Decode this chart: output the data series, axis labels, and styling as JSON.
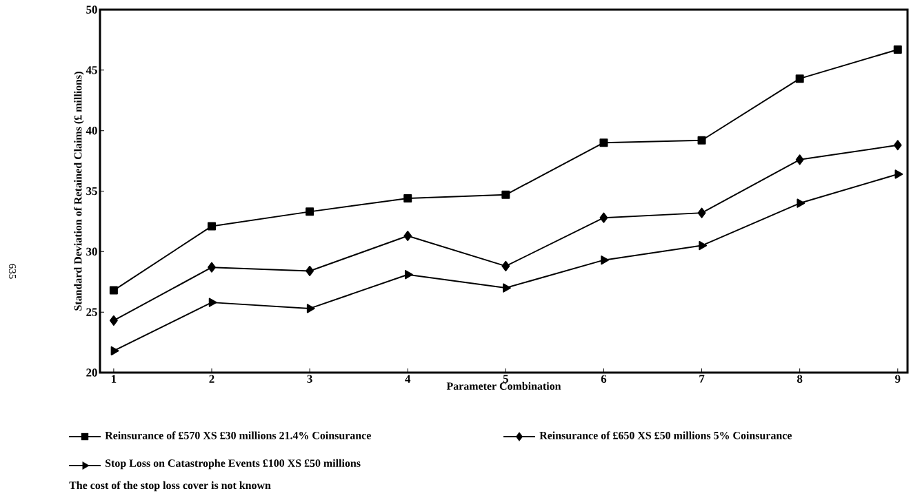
{
  "chart_data": {
    "type": "line",
    "xlabel": "Parameter Combination",
    "ylabel": "Standard Deviation of Retained Claims (£ millions)",
    "x": [
      1,
      2,
      3,
      4,
      5,
      6,
      7,
      8,
      9
    ],
    "series": [
      {
        "name": "Reinsurance of £570 XS £30 millions 21.4% Coinsurance",
        "color": "#000000",
        "marker": "square",
        "values": [
          26.8,
          32.1,
          33.3,
          34.4,
          34.7,
          39.0,
          39.2,
          44.3,
          46.7
        ]
      },
      {
        "name": "Reinsurance of £650 XS £50 millions 5% Coinsurance",
        "color": "#000000",
        "marker": "diamond",
        "values": [
          24.3,
          28.7,
          28.4,
          31.3,
          28.8,
          32.8,
          33.2,
          37.6,
          38.8
        ]
      },
      {
        "name": "Stop Loss on Catastrophe Events £100 XS £50 millions",
        "color": "#000000",
        "marker": "triangle",
        "values": [
          21.8,
          25.8,
          25.3,
          28.1,
          27.0,
          29.3,
          30.5,
          34.0,
          36.4
        ]
      }
    ],
    "xlim": [
      0.86,
      9.1
    ],
    "xticks": [
      1,
      2,
      3,
      4,
      5,
      6,
      7,
      8,
      9
    ],
    "ylim": [
      20,
      50
    ],
    "yticks": [
      20,
      25,
      30,
      35,
      40,
      45,
      50
    ],
    "grid": false,
    "legend": "bottom",
    "line_style": "solid",
    "annotations": [
      "The cost of the stop loss cover is not known",
      "635"
    ]
  }
}
